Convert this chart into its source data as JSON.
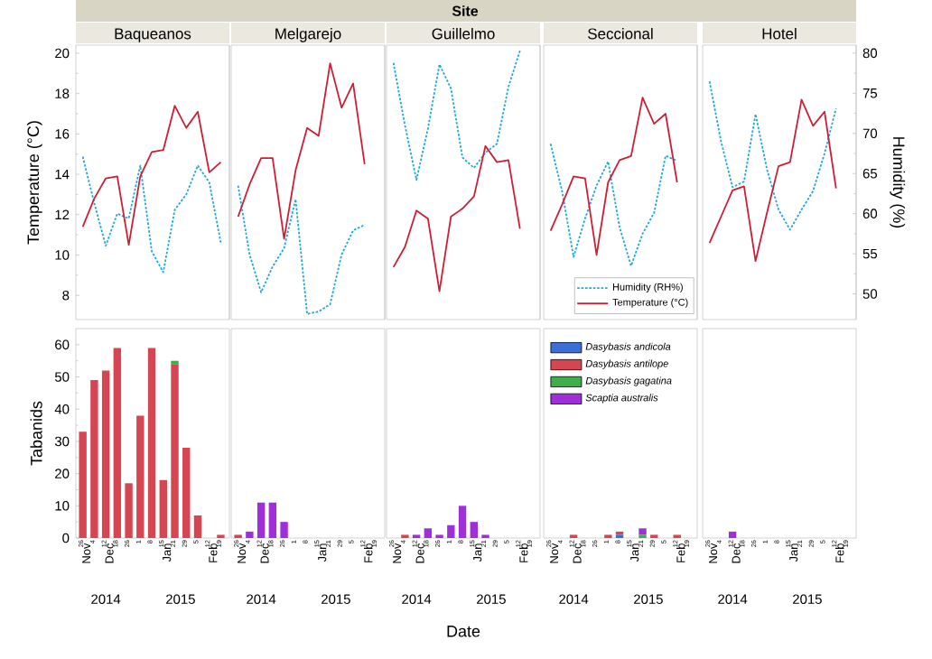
{
  "chart_data": [
    {
      "type": "line",
      "title": "Baqueanos",
      "ylabel": "Temperature (°C)",
      "annotations": [
        "Site"
      ],
      "categories": [
        "26",
        "4",
        "12",
        "18",
        "26",
        "1",
        "8",
        "15",
        "21",
        "29",
        "5",
        "12",
        "19"
      ],
      "tick_labels": "y",
      "series": [
        {
          "color": "#cc1f36",
          "line_style": "solid",
          "values": [
            11.4,
            12.8,
            13.8,
            13.9,
            10.5,
            13.9,
            15.1,
            15.2,
            17.4,
            16.3,
            17.1,
            14.1,
            14.6
          ]
        },
        {
          "color": "#22a8d8",
          "line_style": "dotted",
          "axis": "y2",
          "values": [
            67.1,
            61.3,
            56.0,
            60.0,
            59.4,
            66.0,
            55.3,
            52.7,
            60.5,
            62.4,
            66.0,
            63.9,
            56.4
          ]
        }
      ],
      "ylim": [
        6.8,
        20.4
      ],
      "yticks": [
        8,
        10,
        12,
        14,
        16,
        18,
        20
      ],
      "y2lim": [
        46.8,
        81
      ]
    },
    {
      "type": "line",
      "title": "Melgarejo",
      "categories": [
        "26",
        "4",
        "12",
        "18",
        "26",
        "1",
        "8",
        "15",
        "21",
        "29",
        "5",
        "12",
        "19"
      ],
      "series": [
        {
          "color": "#cc1f36",
          "line_style": "solid",
          "values": [
            11.9,
            13.5,
            14.8,
            14.8,
            10.8,
            14.2,
            16.3,
            15.9,
            19.5,
            17.3,
            18.5,
            14.5,
            null
          ]
        },
        {
          "color": "#22a8d8",
          "line_style": "dotted",
          "axis": "y2",
          "values": [
            63.5,
            54.9,
            50.2,
            53.4,
            55.7,
            61.8,
            47.5,
            47.8,
            48.7,
            54.9,
            57.9,
            58.6,
            null
          ]
        }
      ],
      "ylim": [
        6.8,
        20.4
      ],
      "y2lim": [
        46.8,
        81
      ],
      "tick_labels": false
    },
    {
      "type": "line",
      "title": "Guillelmo",
      "categories": [
        "26",
        "4",
        "12",
        "18",
        "26",
        "1",
        "8",
        "15",
        "21",
        "29",
        "5",
        "12",
        "19"
      ],
      "series": [
        {
          "color": "#cc1f36",
          "line_style": "solid",
          "values": [
            9.4,
            10.4,
            12.2,
            11.8,
            8.2,
            11.9,
            12.3,
            12.9,
            15.4,
            14.6,
            14.7,
            11.3,
            null
          ]
        },
        {
          "color": "#22a8d8",
          "line_style": "dotted",
          "axis": "y2",
          "values": [
            78.8,
            71.0,
            64.2,
            70.6,
            78.6,
            75.6,
            67.0,
            65.7,
            67.6,
            68.7,
            75.8,
            80.3,
            null
          ]
        }
      ],
      "ylim": [
        6.8,
        20.4
      ],
      "y2lim": [
        46.8,
        81
      ],
      "tick_labels": false
    },
    {
      "type": "line",
      "title": "Seccional",
      "legend": "bottom right",
      "categories": [
        "26",
        "4",
        "12",
        "18",
        "26",
        "1",
        "8",
        "15",
        "21",
        "29",
        "5",
        "12",
        "19"
      ],
      "series": [
        {
          "name": "Temperature (°C)",
          "color": "#cc1f36",
          "line_style": "solid",
          "values": [
            11.2,
            12.5,
            13.9,
            13.8,
            10.0,
            13.6,
            14.7,
            14.9,
            17.8,
            16.5,
            17.0,
            13.6,
            null
          ]
        },
        {
          "name": "Humidity (RH%)",
          "color": "#22a8d8",
          "line_style": "dotted",
          "axis": "y2",
          "values": [
            68.7,
            62.8,
            54.6,
            59.4,
            63.5,
            66.5,
            58.3,
            53.5,
            57.5,
            60.1,
            67.2,
            66.6,
            null
          ]
        }
      ],
      "ylim": [
        6.8,
        20.4
      ],
      "y2lim": [
        46.8,
        81
      ],
      "tick_labels": false
    },
    {
      "type": "line",
      "title": "Hotel",
      "y2label": "Humidity (%)",
      "categories": [
        "26",
        "4",
        "12",
        "18",
        "26",
        "1",
        "8",
        "15",
        "21",
        "29",
        "5",
        "12",
        "19"
      ],
      "tick_labels": "y",
      "series": [
        {
          "color": "#cc1f36",
          "line_style": "solid",
          "values": [
            10.6,
            11.9,
            13.2,
            13.4,
            9.7,
            12.1,
            14.4,
            14.6,
            17.7,
            16.4,
            17.1,
            13.3,
            null
          ]
        },
        {
          "color": "#22a8d8",
          "line_style": "dotted",
          "axis": "y2",
          "values": [
            76.5,
            69.0,
            63.3,
            64.0,
            72.4,
            65.5,
            60.5,
            58.0,
            60.5,
            62.8,
            67.5,
            73.1,
            null
          ]
        }
      ],
      "ylim": [
        6.8,
        20.4
      ],
      "y2lim": [
        46.8,
        81
      ],
      "y2ticks": [
        50,
        55,
        60,
        65,
        70,
        75,
        80
      ]
    },
    {
      "type": "bar",
      "stacked": true,
      "ylabel": "Tabanids",
      "categories": [
        "26",
        "4",
        "12",
        "18",
        "26",
        "1",
        "8",
        "15",
        "21",
        "29",
        "5",
        "12",
        "19"
      ],
      "annotations": [
        "Nov",
        "Dec",
        "Jan",
        "Feb",
        "2014",
        "2015"
      ],
      "series": [
        {
          "color": "#3c6ed8",
          "values": [
            0,
            0,
            0,
            0,
            0,
            0,
            0,
            0,
            0,
            0,
            0,
            0,
            0
          ]
        },
        {
          "color": "#d64552",
          "values": [
            33,
            49,
            52,
            59,
            17,
            38,
            59,
            18,
            54,
            28,
            7,
            0,
            1
          ]
        },
        {
          "color": "#3cae4a",
          "values": [
            0,
            0,
            0,
            0,
            0,
            0,
            0,
            0,
            1,
            0,
            0,
            0,
            0
          ]
        },
        {
          "color": "#a12fd9",
          "values": [
            0,
            0,
            0,
            0,
            0,
            0,
            0,
            0,
            0,
            0,
            0,
            0,
            0
          ]
        }
      ],
      "ylim": [
        0,
        65
      ],
      "yticks": [
        0,
        10,
        20,
        30,
        40,
        50,
        60
      ]
    },
    {
      "type": "bar",
      "stacked": true,
      "categories": [
        "26",
        "4",
        "12",
        "18",
        "26",
        "1",
        "8",
        "15",
        "21",
        "29",
        "5",
        "12",
        "19"
      ],
      "annotations": [
        "Nov",
        "Dec",
        "Jan",
        "Feb",
        "2014",
        "2015"
      ],
      "series": [
        {
          "color": "#3c6ed8",
          "values": [
            0,
            0,
            0,
            0,
            0,
            0,
            0,
            0,
            0,
            0,
            0,
            0,
            0
          ]
        },
        {
          "color": "#d64552",
          "values": [
            1,
            0,
            0,
            0,
            0,
            0,
            0,
            0,
            0,
            0,
            0,
            0,
            0
          ]
        },
        {
          "color": "#3cae4a",
          "values": [
            0,
            0,
            0,
            0,
            0,
            0,
            0,
            0,
            0,
            0,
            0,
            0,
            0
          ]
        },
        {
          "color": "#a12fd9",
          "values": [
            0,
            2,
            11,
            11,
            5,
            0,
            0,
            0,
            0,
            0,
            0,
            0,
            0
          ]
        }
      ],
      "ylim": [
        0,
        65
      ],
      "yticks": [
        0,
        10,
        20,
        30,
        40,
        50,
        60
      ],
      "tick_labels": "x"
    },
    {
      "type": "bar",
      "stacked": true,
      "xlabel": "Date",
      "categories": [
        "26",
        "4",
        "12",
        "18",
        "26",
        "1",
        "8",
        "15",
        "21",
        "29",
        "5",
        "12",
        "19"
      ],
      "annotations": [
        "Nov",
        "Dec",
        "Jan",
        "Feb",
        "2014",
        "2015"
      ],
      "series": [
        {
          "color": "#3c6ed8",
          "values": [
            0,
            0,
            0,
            0,
            0,
            0,
            0,
            0,
            0,
            0,
            0,
            0,
            0
          ]
        },
        {
          "color": "#d64552",
          "values": [
            0,
            1,
            0,
            0,
            0,
            0,
            0,
            0,
            0,
            0,
            0,
            0,
            0
          ]
        },
        {
          "color": "#3cae4a",
          "values": [
            0,
            0,
            0,
            0,
            0,
            0,
            0,
            0,
            0,
            0,
            0,
            0,
            0
          ]
        },
        {
          "color": "#a12fd9",
          "values": [
            0,
            0,
            1,
            3,
            1,
            4,
            10,
            5,
            1,
            0,
            0,
            0,
            0
          ]
        }
      ],
      "ylim": [
        0,
        65
      ],
      "yticks": [
        0,
        10,
        20,
        30,
        40,
        50,
        60
      ],
      "tick_labels": "x"
    },
    {
      "type": "bar",
      "stacked": true,
      "legend": "top left",
      "categories": [
        "26",
        "4",
        "12",
        "18",
        "26",
        "1",
        "8",
        "15",
        "21",
        "29",
        "5",
        "12",
        "19"
      ],
      "annotations": [
        "Nov",
        "Dec",
        "Jan",
        "Feb",
        "2014",
        "2015"
      ],
      "series": [
        {
          "name": "Dasybasis andicola",
          "color": "#3c6ed8",
          "values": [
            0,
            0,
            0,
            0,
            0,
            0,
            1,
            0,
            0,
            0,
            0,
            0,
            0
          ]
        },
        {
          "name": "Dasybasis antilope",
          "color": "#d64552",
          "values": [
            0,
            0,
            1,
            0,
            0,
            1,
            1,
            0,
            0,
            1,
            0,
            1,
            0
          ]
        },
        {
          "name": "Dasybasis gagatina",
          "color": "#3cae4a",
          "values": [
            0,
            0,
            0,
            0,
            0,
            0,
            0,
            0,
            1,
            0,
            0,
            0,
            0
          ]
        },
        {
          "name": "Scaptia australis",
          "color": "#a12fd9",
          "values": [
            0,
            0,
            0,
            0,
            0,
            0,
            0,
            0,
            2,
            0,
            0,
            0,
            0
          ]
        }
      ],
      "ylim": [
        0,
        65
      ],
      "yticks": [
        0,
        10,
        20,
        30,
        40,
        50,
        60
      ],
      "tick_labels": "x"
    },
    {
      "type": "bar",
      "stacked": true,
      "categories": [
        "26",
        "4",
        "12",
        "18",
        "26",
        "1",
        "8",
        "15",
        "21",
        "29",
        "5",
        "12",
        "19"
      ],
      "annotations": [
        "Nov",
        "Dec",
        "Jan",
        "Feb",
        "2014",
        "2015"
      ],
      "series": [
        {
          "color": "#3c6ed8",
          "values": [
            0,
            0,
            0,
            0,
            0,
            0,
            0,
            0,
            0,
            0,
            0,
            0,
            0
          ]
        },
        {
          "color": "#d64552",
          "values": [
            0,
            0,
            0,
            0,
            0,
            0,
            0,
            0,
            0,
            0,
            0,
            0,
            0
          ]
        },
        {
          "color": "#3cae4a",
          "values": [
            0,
            0,
            0,
            0,
            0,
            0,
            0,
            0,
            0,
            0,
            0,
            0,
            0
          ]
        },
        {
          "color": "#a12fd9",
          "values": [
            0,
            0,
            2,
            0,
            0,
            0,
            0,
            0,
            0,
            0,
            0,
            0,
            0
          ]
        }
      ],
      "ylim": [
        0,
        65
      ],
      "yticks": [
        0,
        10,
        20,
        30,
        40,
        50,
        60
      ],
      "tick_labels": "x"
    }
  ]
}
